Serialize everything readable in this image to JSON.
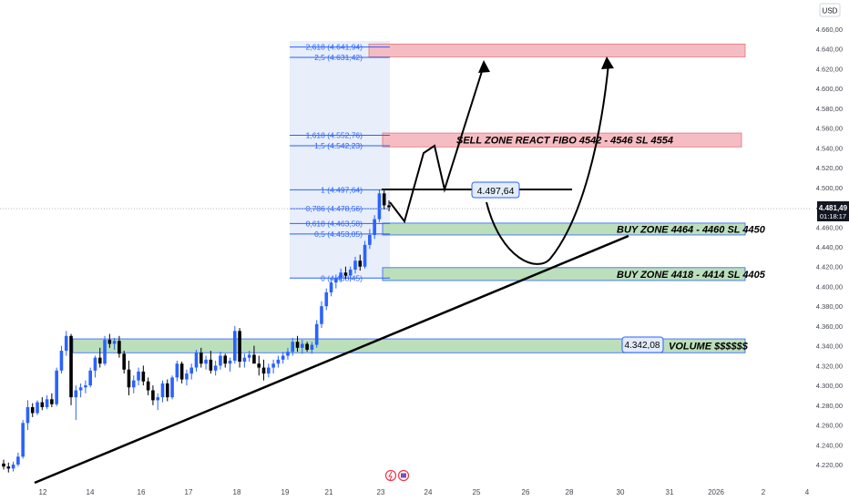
{
  "currency": "USD",
  "price_badge": {
    "price": "4.481,49",
    "countdown": "01:18:17"
  },
  "colors": {
    "bull": "#2962ff",
    "bear": "#000000",
    "sell_zone": "#f4b6bd",
    "buy_zone": "#b5dcb4",
    "fib_line": "#2962ff",
    "fib_band": "#e8eefa",
    "trendline": "#000000",
    "axis_text": "#434651",
    "price_badge_bg": "#131722"
  },
  "chart_data": {
    "type": "candlestick",
    "y_axis": {
      "min": 4210,
      "max": 4670,
      "ticks": [
        "4.220,00",
        "4.240,00",
        "4.260,00",
        "4.280,00",
        "4.300,00",
        "4.320,00",
        "4.340,00",
        "4.360,00",
        "4.380,00",
        "4.400,00",
        "4.420,00",
        "4.440,00",
        "4.460,00",
        "4.480,00",
        "4.500,00",
        "4.520,00",
        "4.540,00",
        "4.560,00",
        "4.580,00",
        "4.600,00",
        "4.620,00",
        "4.640,00",
        "4.660,00"
      ],
      "tick_values": [
        4220,
        4240,
        4260,
        4280,
        4300,
        4320,
        4340,
        4360,
        4380,
        4400,
        4420,
        4440,
        4460,
        4480,
        4500,
        4520,
        4540,
        4560,
        4580,
        4600,
        4620,
        4640,
        4660
      ]
    },
    "x_axis": {
      "labels": [
        "12",
        "14",
        "16",
        "17",
        "18",
        "19",
        "21",
        "23",
        "24",
        "25",
        "26",
        "28",
        "30",
        "31",
        "2026",
        "2",
        "4"
      ],
      "label_positions": [
        47,
        99,
        155,
        207,
        260,
        313,
        361,
        418,
        470,
        523,
        577,
        625,
        681,
        735,
        786,
        838,
        886
      ]
    },
    "candles": [
      {
        "o": 4221,
        "h": 4225,
        "l": 4215,
        "c": 4218
      },
      {
        "o": 4218,
        "h": 4222,
        "l": 4212,
        "c": 4216
      },
      {
        "o": 4216,
        "h": 4223,
        "l": 4213,
        "c": 4220
      },
      {
        "o": 4220,
        "h": 4232,
        "l": 4218,
        "c": 4228
      },
      {
        "o": 4228,
        "h": 4265,
        "l": 4226,
        "c": 4262
      },
      {
        "o": 4262,
        "h": 4285,
        "l": 4255,
        "c": 4278
      },
      {
        "o": 4278,
        "h": 4282,
        "l": 4268,
        "c": 4272
      },
      {
        "o": 4272,
        "h": 4285,
        "l": 4270,
        "c": 4283
      },
      {
        "o": 4283,
        "h": 4288,
        "l": 4275,
        "c": 4278
      },
      {
        "o": 4278,
        "h": 4290,
        "l": 4276,
        "c": 4286
      },
      {
        "o": 4286,
        "h": 4292,
        "l": 4278,
        "c": 4281
      },
      {
        "o": 4281,
        "h": 4318,
        "l": 4279,
        "c": 4315
      },
      {
        "o": 4315,
        "h": 4340,
        "l": 4312,
        "c": 4335
      },
      {
        "o": 4335,
        "h": 4355,
        "l": 4330,
        "c": 4350
      },
      {
        "o": 4350,
        "h": 4352,
        "l": 4280,
        "c": 4288
      },
      {
        "o": 4288,
        "h": 4300,
        "l": 4265,
        "c": 4295
      },
      {
        "o": 4295,
        "h": 4302,
        "l": 4288,
        "c": 4298
      },
      {
        "o": 4298,
        "h": 4305,
        "l": 4292,
        "c": 4300
      },
      {
        "o": 4300,
        "h": 4318,
        "l": 4298,
        "c": 4315
      },
      {
        "o": 4315,
        "h": 4330,
        "l": 4308,
        "c": 4328
      },
      {
        "o": 4328,
        "h": 4338,
        "l": 4318,
        "c": 4322
      },
      {
        "o": 4322,
        "h": 4350,
        "l": 4320,
        "c": 4346
      },
      {
        "o": 4346,
        "h": 4352,
        "l": 4338,
        "c": 4342
      },
      {
        "o": 4342,
        "h": 4348,
        "l": 4336,
        "c": 4345
      },
      {
        "o": 4345,
        "h": 4350,
        "l": 4328,
        "c": 4332
      },
      {
        "o": 4332,
        "h": 4335,
        "l": 4312,
        "c": 4316
      },
      {
        "o": 4316,
        "h": 4325,
        "l": 4290,
        "c": 4298
      },
      {
        "o": 4298,
        "h": 4310,
        "l": 4292,
        "c": 4305
      },
      {
        "o": 4305,
        "h": 4318,
        "l": 4300,
        "c": 4314
      },
      {
        "o": 4314,
        "h": 4320,
        "l": 4300,
        "c": 4304
      },
      {
        "o": 4304,
        "h": 4308,
        "l": 4290,
        "c": 4295
      },
      {
        "o": 4295,
        "h": 4300,
        "l": 4280,
        "c": 4285
      },
      {
        "o": 4285,
        "h": 4292,
        "l": 4275,
        "c": 4288
      },
      {
        "o": 4288,
        "h": 4305,
        "l": 4283,
        "c": 4302
      },
      {
        "o": 4302,
        "h": 4306,
        "l": 4284,
        "c": 4288
      },
      {
        "o": 4288,
        "h": 4310,
        "l": 4286,
        "c": 4308
      },
      {
        "o": 4308,
        "h": 4325,
        "l": 4304,
        "c": 4322
      },
      {
        "o": 4322,
        "h": 4324,
        "l": 4302,
        "c": 4306
      },
      {
        "o": 4306,
        "h": 4316,
        "l": 4300,
        "c": 4312
      },
      {
        "o": 4312,
        "h": 4322,
        "l": 4306,
        "c": 4318
      },
      {
        "o": 4318,
        "h": 4336,
        "l": 4314,
        "c": 4333
      },
      {
        "o": 4333,
        "h": 4338,
        "l": 4318,
        "c": 4322
      },
      {
        "o": 4322,
        "h": 4330,
        "l": 4316,
        "c": 4326
      },
      {
        "o": 4326,
        "h": 4335,
        "l": 4312,
        "c": 4315
      },
      {
        "o": 4315,
        "h": 4325,
        "l": 4310,
        "c": 4320
      },
      {
        "o": 4320,
        "h": 4334,
        "l": 4316,
        "c": 4330
      },
      {
        "o": 4330,
        "h": 4332,
        "l": 4318,
        "c": 4322
      },
      {
        "o": 4322,
        "h": 4328,
        "l": 4314,
        "c": 4325
      },
      {
        "o": 4325,
        "h": 4360,
        "l": 4322,
        "c": 4355
      },
      {
        "o": 4355,
        "h": 4358,
        "l": 4318,
        "c": 4324
      },
      {
        "o": 4324,
        "h": 4332,
        "l": 4318,
        "c": 4328
      },
      {
        "o": 4328,
        "h": 4335,
        "l": 4324,
        "c": 4331
      },
      {
        "o": 4331,
        "h": 4340,
        "l": 4326,
        "c": 4322
      },
      {
        "o": 4322,
        "h": 4330,
        "l": 4310,
        "c": 4318
      },
      {
        "o": 4318,
        "h": 4326,
        "l": 4305,
        "c": 4312
      },
      {
        "o": 4312,
        "h": 4322,
        "l": 4308,
        "c": 4318
      },
      {
        "o": 4318,
        "h": 4326,
        "l": 4312,
        "c": 4322
      },
      {
        "o": 4322,
        "h": 4330,
        "l": 4318,
        "c": 4326
      },
      {
        "o": 4326,
        "h": 4334,
        "l": 4322,
        "c": 4330
      },
      {
        "o": 4330,
        "h": 4338,
        "l": 4326,
        "c": 4334
      },
      {
        "o": 4334,
        "h": 4348,
        "l": 4330,
        "c": 4344
      },
      {
        "o": 4344,
        "h": 4350,
        "l": 4334,
        "c": 4338
      },
      {
        "o": 4338,
        "h": 4346,
        "l": 4332,
        "c": 4342
      },
      {
        "o": 4342,
        "h": 4344,
        "l": 4334,
        "c": 4336
      },
      {
        "o": 4336,
        "h": 4344,
        "l": 4332,
        "c": 4341
      },
      {
        "o": 4341,
        "h": 4366,
        "l": 4338,
        "c": 4362
      },
      {
        "o": 4362,
        "h": 4385,
        "l": 4358,
        "c": 4380
      },
      {
        "o": 4380,
        "h": 4398,
        "l": 4376,
        "c": 4394
      },
      {
        "o": 4394,
        "h": 4408,
        "l": 4390,
        "c": 4404
      },
      {
        "o": 4404,
        "h": 4412,
        "l": 4398,
        "c": 4408
      },
      {
        "o": 4408,
        "h": 4418,
        "l": 4404,
        "c": 4414
      },
      {
        "o": 4414,
        "h": 4420,
        "l": 4408,
        "c": 4411
      },
      {
        "o": 4411,
        "h": 4420,
        "l": 4406,
        "c": 4417
      },
      {
        "o": 4417,
        "h": 4430,
        "l": 4413,
        "c": 4426
      },
      {
        "o": 4426,
        "h": 4432,
        "l": 4416,
        "c": 4420
      },
      {
        "o": 4420,
        "h": 4446,
        "l": 4418,
        "c": 4442
      },
      {
        "o": 4442,
        "h": 4458,
        "l": 4438,
        "c": 4452
      },
      {
        "o": 4452,
        "h": 4472,
        "l": 4448,
        "c": 4468
      },
      {
        "o": 4468,
        "h": 4498,
        "l": 4465,
        "c": 4494
      },
      {
        "o": 4494,
        "h": 4498,
        "l": 4478,
        "c": 4482
      },
      {
        "o": 4482,
        "h": 4487,
        "l": 4476,
        "c": 4480
      }
    ],
    "fib_levels": [
      {
        "label": "2,618 (4.641,94)",
        "price": 4641.94
      },
      {
        "label": "2,5 (4.631,42)",
        "price": 4631.42
      },
      {
        "label": "1,618 (4.552,76)",
        "price": 4552.76
      },
      {
        "label": "1,5 (4.542,23)",
        "price": 4542.23
      },
      {
        "label": "1 (4.497,64)",
        "price": 4497.64
      },
      {
        "label": "0,786 (4.478,56)",
        "price": 4478.56
      },
      {
        "label": "0,618 (4.463,58)",
        "price": 4463.58
      },
      {
        "label": "0,5 (4.453,05)",
        "price": 4453.05
      },
      {
        "label": "0 (4.408,45)",
        "price": 4408.45
      }
    ],
    "zones": [
      {
        "kind": "sell",
        "top": 4645,
        "bottom": 4632
      },
      {
        "kind": "sell",
        "label": "SELL ZONE REACT FIBO 4542 - 4546 SL 4554",
        "top": 4555,
        "bottom": 4541
      },
      {
        "kind": "buy",
        "label": "BUY ZONE 4464 - 4460 SL 4450",
        "top": 4464,
        "bottom": 4452
      },
      {
        "kind": "buy",
        "label": "BUY ZONE 4418 - 4414 SL 4405",
        "top": 4419,
        "bottom": 4406
      },
      {
        "kind": "buy",
        "label": "VOLUME $$$$$$",
        "top": 4347,
        "bottom": 4333
      }
    ],
    "annotations": {
      "resistance_label": "4.497,64",
      "volume_price_label": "4.342,08"
    }
  }
}
